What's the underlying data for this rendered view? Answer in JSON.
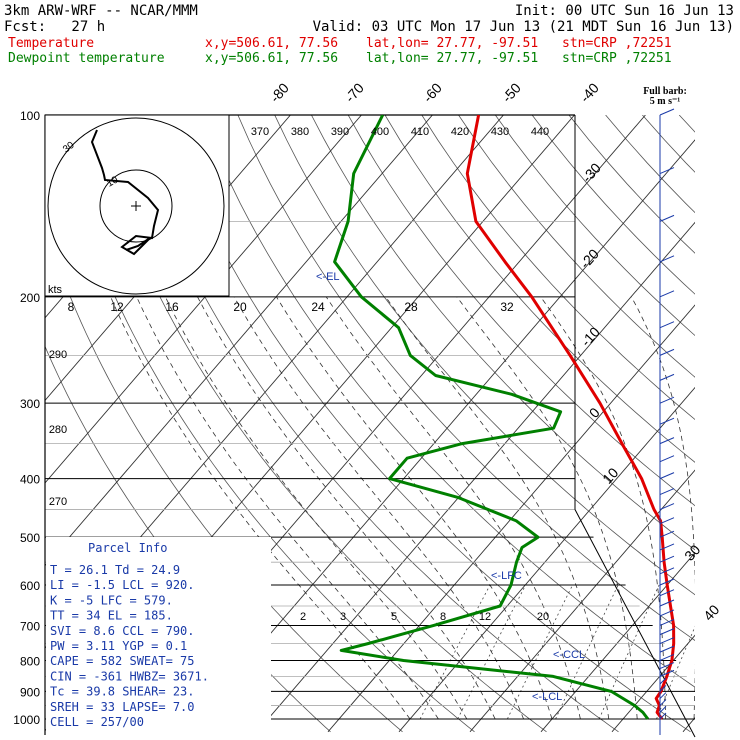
{
  "header": {
    "model": "3km ARW-WRF -- NCAR/MMM",
    "init": "Init: 00 UTC Sun 16 Jun 13",
    "fcst": "Fcst:   27 h",
    "valid": "Valid: 03 UTC Mon 17 Jun 13 (21 MDT Sun 16 Jun 13)",
    "temp_label": "Temperature",
    "dew_label": "Dewpoint temperature",
    "xy": "x,y=506.61, 77.56",
    "latlon": "lat,lon= 27.77, -97.51",
    "stn": "stn=CRP ,72251"
  },
  "colors": {
    "temperature": "#e00000",
    "dewpoint": "#008000",
    "info": "#1a3aa8"
  },
  "barb_legend": {
    "line1": "Full barb:",
    "line2": "5 m s⁻¹"
  },
  "hodograph": {
    "units": "kts",
    "ring_labels": [
      "10",
      "30"
    ]
  },
  "theta_labels": [
    "370",
    "380",
    "390",
    "400",
    "410",
    "420",
    "430",
    "440"
  ],
  "speed_labels": [
    "8",
    "12",
    "16",
    "20",
    "24",
    "28",
    "32"
  ],
  "theta_side_labels": [
    "290",
    "280",
    "270"
  ],
  "el_label": "<-EL",
  "lfc_label": "<-LFC",
  "ccl_label": "<-CCL",
  "lcl_label": "<-LCL",
  "parcel": {
    "title": "Parcel Info",
    "rows": [
      "T  =   26.1  Td =  24.9",
      "LI =   -1.5  LCL =  920.",
      "K  =     -5  LFC =  579.",
      "TT =     34  EL  =  185.",
      "SVI =   8.6  CCL =  790.",
      "PW =   3.11  YGP =   0.1",
      "CAPE =  582  SWEAT=   75",
      "CIN =  -361  HWBZ= 3671.",
      "Tc =   39.8  SHEAR=  23.",
      "SREH =   33  LAPSE=  7.0",
      "CELL = 257/00"
    ]
  },
  "chart_data": {
    "type": "skew-t",
    "pressure_axis_labels": [
      "100",
      "200",
      "300",
      "400",
      "500",
      "600",
      "700",
      "800",
      "900",
      "1000"
    ],
    "isotherm_labels": [
      "-80",
      "-70",
      "-60",
      "-50",
      "-40",
      "-30",
      "-20",
      "-10",
      "0",
      "10",
      "30",
      "40"
    ],
    "mixing_ratio_labels": [
      "2",
      "3",
      "5",
      "8",
      "12",
      "20"
    ],
    "series": [
      {
        "name": "Temperature",
        "points": [
          [
            1000,
            25.5
          ],
          [
            975,
            24.0
          ],
          [
            950,
            23.5
          ],
          [
            925,
            22.2
          ],
          [
            900,
            22.0
          ],
          [
            850,
            21.0
          ],
          [
            800,
            19.8
          ],
          [
            750,
            18.0
          ],
          [
            700,
            15.8
          ],
          [
            650,
            13.0
          ],
          [
            600,
            10.0
          ],
          [
            550,
            6.8
          ],
          [
            500,
            3.5
          ],
          [
            470,
            1.3
          ],
          [
            450,
            -1.0
          ],
          [
            400,
            -6.5
          ],
          [
            350,
            -13.5
          ],
          [
            300,
            -21.5
          ],
          [
            250,
            -31.5
          ],
          [
            200,
            -44.0
          ],
          [
            175,
            -52.0
          ],
          [
            150,
            -61.0
          ],
          [
            125,
            -68.0
          ],
          [
            100,
            -73.5
          ]
        ]
      },
      {
        "name": "Dewpoint temperature",
        "points": [
          [
            1000,
            23.5
          ],
          [
            975,
            22.0
          ],
          [
            950,
            20.0
          ],
          [
            900,
            15.0
          ],
          [
            850,
            5.0
          ],
          [
            800,
            -18.0
          ],
          [
            770,
            -28.0
          ],
          [
            750,
            -25.0
          ],
          [
            700,
            -18.0
          ],
          [
            650,
            -11.0
          ],
          [
            600,
            -12.0
          ],
          [
            550,
            -14.0
          ],
          [
            520,
            -15.0
          ],
          [
            500,
            -14.0
          ],
          [
            470,
            -19.0
          ],
          [
            430,
            -30.0
          ],
          [
            400,
            -42.0
          ],
          [
            370,
            -42.0
          ],
          [
            350,
            -36.0
          ],
          [
            330,
            -25.0
          ],
          [
            310,
            -26.0
          ],
          [
            290,
            -35.0
          ],
          [
            270,
            -48.0
          ],
          [
            250,
            -54.0
          ],
          [
            225,
            -59.0
          ],
          [
            200,
            -68.0
          ],
          [
            175,
            -76.0
          ],
          [
            150,
            -79.0
          ],
          [
            125,
            -84.0
          ],
          [
            100,
            -87.0
          ]
        ]
      }
    ]
  }
}
